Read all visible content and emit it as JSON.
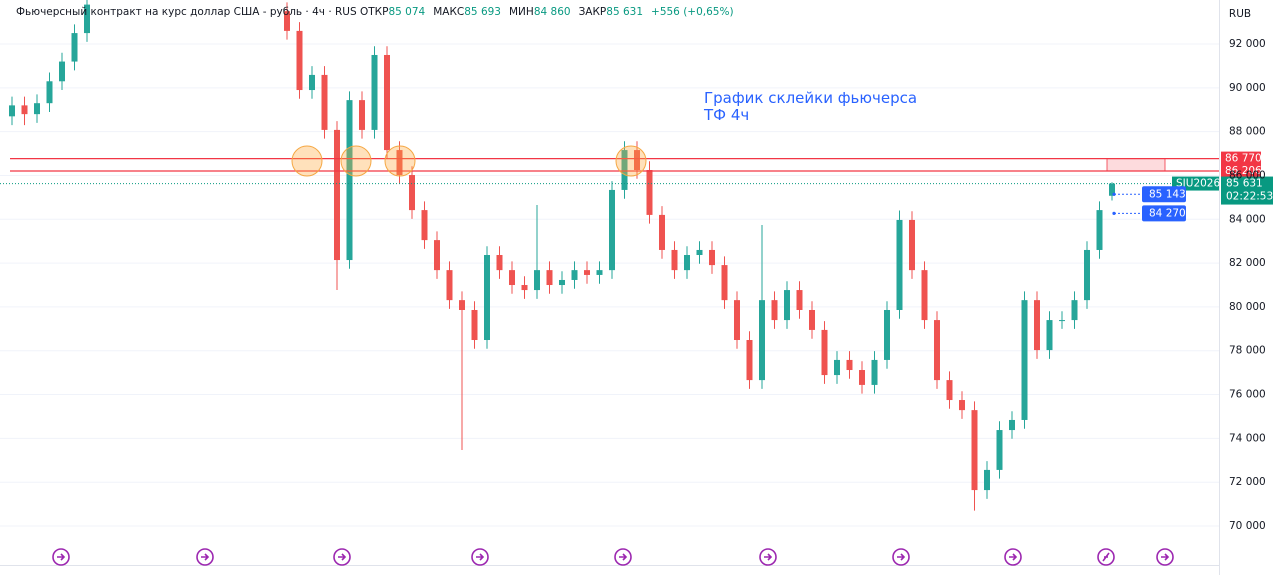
{
  "chart_data": {
    "type": "candlestick",
    "header": {
      "title": "Фьючерсный контракт на курс доллар США - рубль · 4ч · RUS",
      "stats": [
        {
          "label": "ОТКР",
          "value": "85 074"
        },
        {
          "label": "МАКС",
          "value": "85 693"
        },
        {
          "label": "МИН",
          "value": "84 860"
        },
        {
          "label": "ЗАКР",
          "value": "85 631"
        }
      ],
      "change": "+556 (+0,65%)"
    },
    "annotation": [
      "График склейки фьючерса",
      "ТФ 4ч"
    ],
    "currency": "RUB",
    "up_color": "#26a69a",
    "down_color": "#ef5350",
    "open": [
      88700,
      89200,
      88800,
      89300,
      90300,
      91200,
      92500,
      null,
      null,
      null,
      null,
      null,
      null,
      null,
      null,
      null,
      null,
      null,
      null,
      null,
      null,
      null,
      93500,
      92600,
      89900,
      90590,
      88080,
      82140,
      89440,
      88080,
      91500,
      87160,
      86020,
      84420,
      83050,
      81680,
      80310,
      79860,
      78490,
      82370,
      81680,
      81000,
      80770,
      81680,
      81000,
      81230,
      81680,
      81460,
      81680,
      85340,
      87160,
      86250,
      84200,
      82600,
      81680,
      82370,
      82600,
      81910,
      80310,
      78490,
      76660,
      80310,
      79400,
      80770,
      79860,
      78950,
      76890,
      77580,
      77120,
      76440,
      77580,
      79860,
      83970,
      81680,
      79400,
      76660,
      75750,
      75290,
      71640,
      72560,
      74380,
      74840,
      80310,
      78030,
      79400,
      79400,
      80310,
      82600,
      85074
    ],
    "high": [
      89600,
      89600,
      89700,
      90700,
      91600,
      92900,
      94200,
      null,
      null,
      null,
      null,
      null,
      null,
      null,
      null,
      null,
      null,
      null,
      null,
      null,
      null,
      null,
      93900,
      93000,
      90990,
      90990,
      88480,
      89840,
      89840,
      91900,
      91900,
      87560,
      86420,
      84820,
      83450,
      82080,
      80710,
      80260,
      82770,
      82770,
      82080,
      81400,
      84650,
      82080,
      81630,
      82080,
      82080,
      82080,
      85740,
      87560,
      87560,
      86650,
      84600,
      83000,
      82770,
      83000,
      83000,
      82310,
      80710,
      78890,
      83740,
      80710,
      81170,
      81170,
      80260,
      79350,
      77980,
      77980,
      77520,
      77980,
      80260,
      84400,
      84370,
      82080,
      79800,
      77060,
      76150,
      75690,
      72960,
      74780,
      75240,
      80710,
      80710,
      79800,
      79800,
      80710,
      83000,
      84820,
      85693
    ],
    "low": [
      88300,
      88300,
      88400,
      88900,
      89900,
      90800,
      92100,
      null,
      null,
      null,
      null,
      null,
      null,
      null,
      null,
      null,
      null,
      null,
      null,
      null,
      null,
      null,
      92200,
      89500,
      89500,
      87680,
      80770,
      81740,
      87680,
      87680,
      86760,
      85620,
      84020,
      82650,
      81280,
      79910,
      73470,
      78090,
      78090,
      81280,
      80600,
      80370,
      80370,
      80600,
      80600,
      80830,
      81060,
      81060,
      81280,
      84940,
      85850,
      83800,
      82200,
      81280,
      81280,
      81970,
      81510,
      79910,
      78090,
      76260,
      76260,
      79000,
      79000,
      79460,
      78550,
      76490,
      76490,
      76720,
      76040,
      76040,
      77180,
      79460,
      81280,
      79000,
      76260,
      75350,
      74890,
      70700,
      71240,
      72160,
      73980,
      74440,
      77630,
      77630,
      79000,
      79000,
      79910,
      82200,
      84860
    ],
    "close": [
      89200,
      88800,
      89300,
      90300,
      91200,
      92500,
      93800,
      null,
      null,
      null,
      null,
      null,
      null,
      null,
      null,
      null,
      null,
      null,
      null,
      null,
      null,
      null,
      92600,
      89900,
      90590,
      88080,
      82140,
      89440,
      88080,
      91500,
      87160,
      86020,
      84420,
      83050,
      81680,
      80310,
      79860,
      78490,
      82370,
      81680,
      81000,
      80770,
      81680,
      81000,
      81230,
      81680,
      81460,
      81680,
      85340,
      87160,
      86250,
      84200,
      82600,
      81680,
      82370,
      82600,
      81910,
      80310,
      78490,
      76660,
      80310,
      79400,
      80770,
      79860,
      78950,
      76890,
      77580,
      77120,
      76440,
      77580,
      79860,
      83970,
      81680,
      79400,
      76660,
      75750,
      75290,
      71640,
      72560,
      74380,
      74840,
      80310,
      78030,
      79400,
      79400,
      80310,
      82600,
      84420,
      85631
    ],
    "ylim": [
      68220,
      94010
    ],
    "yticks": [
      {
        "value": 70000,
        "label": "70 000"
      },
      {
        "value": 72000,
        "label": "72 000"
      },
      {
        "value": 74000,
        "label": "74 000"
      },
      {
        "value": 76000,
        "label": "76 000"
      },
      {
        "value": 78000,
        "label": "78 000"
      },
      {
        "value": 80000,
        "label": "80 000"
      },
      {
        "value": 82000,
        "label": "82 000"
      },
      {
        "value": 84000,
        "label": "84 000"
      },
      {
        "value": 86000,
        "label": "86 000"
      },
      {
        "value": 88000,
        "label": "88 000"
      },
      {
        "value": 90000,
        "label": "90 000"
      },
      {
        "value": 92000,
        "label": "92 000"
      }
    ],
    "grid": true,
    "levels": [
      {
        "value": 86770,
        "label": "86 770",
        "color": "#f23645"
      },
      {
        "value": 86206,
        "label": "86 206",
        "color": "#f23645"
      }
    ],
    "last_price": {
      "value": 85631,
      "label": "85 631",
      "symbol": "SIU2026",
      "countdown": "02:22:53",
      "color": "#089981"
    },
    "alerts": [
      {
        "value": 85143,
        "label": "85 143",
        "color": "#2962ff"
      },
      {
        "value": 84270,
        "label": "84 270",
        "color": "#2962ff"
      }
    ]
  }
}
